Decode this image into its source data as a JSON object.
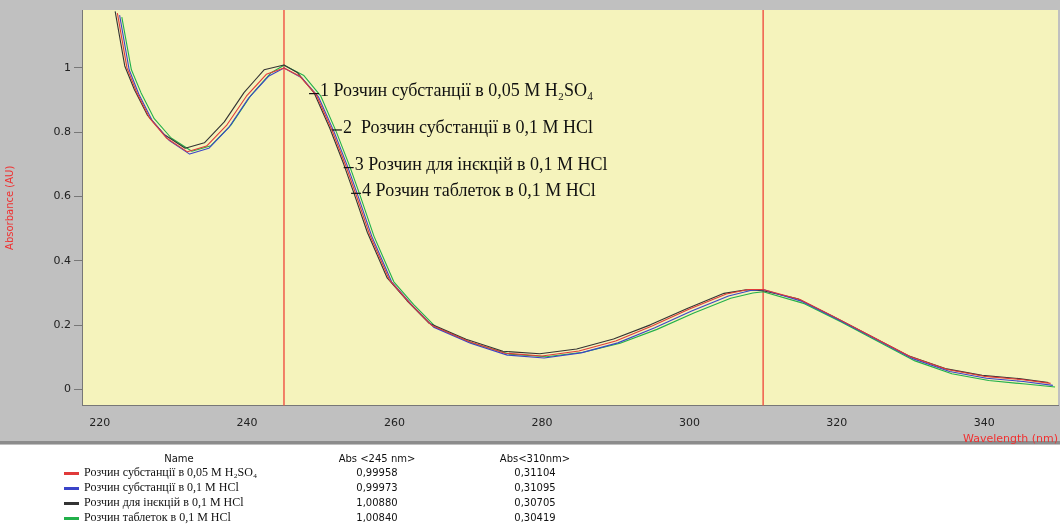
{
  "chart_data": {
    "type": "line",
    "xlabel": "Wavelength (nm)",
    "ylabel": "Absorbance (AU)",
    "x": [
      222.4,
      223.7,
      225,
      226.8,
      229.1,
      231.9,
      234.5,
      237.2,
      239.9,
      242.6,
      245,
      247.1,
      249.4,
      251.5,
      253.4,
      254.8,
      256.6,
      259.3,
      262,
      265,
      270,
      275,
      280,
      285,
      290,
      295,
      300,
      305,
      308,
      310,
      315,
      320,
      325,
      330,
      335,
      340,
      345,
      349
    ],
    "series": [
      {
        "name": "Розчин субстанції в 0,05 M H₂SO₄",
        "color": "#e03a3a",
        "values": [
          1.17,
          1.0,
          0.925,
          0.843,
          0.781,
          0.739,
          0.757,
          0.821,
          0.912,
          0.98,
          0.99958,
          0.975,
          0.915,
          0.807,
          0.695,
          0.604,
          0.483,
          0.341,
          0.27,
          0.2,
          0.15,
          0.113,
          0.104,
          0.12,
          0.151,
          0.198,
          0.25,
          0.297,
          0.311,
          0.31104,
          0.28,
          0.222,
          0.162,
          0.102,
          0.062,
          0.041,
          0.031,
          0.019
        ]
      },
      {
        "name": "Розчин субстанції в 0,1 M HCl",
        "color": "#3a44c8",
        "x": [
          222.7,
          224,
          225.3,
          227.1,
          229.4,
          232.2,
          234.8,
          237.5,
          240.2,
          242.9,
          245,
          247.4,
          249.7,
          251.8,
          253.7,
          255.1,
          256.9,
          259.6,
          262.3,
          265.3,
          270.3,
          275.3,
          280.3,
          285.3,
          290.3,
          295.3,
          300.3,
          305.3,
          308.3,
          310,
          315.3,
          320.3,
          325.3,
          330.3,
          335.3,
          340.3,
          345.3,
          349.3
        ],
        "values": [
          1.164,
          0.994,
          0.919,
          0.837,
          0.775,
          0.732,
          0.75,
          0.814,
          0.906,
          0.974,
          0.99973,
          0.969,
          0.909,
          0.801,
          0.689,
          0.598,
          0.477,
          0.335,
          0.264,
          0.194,
          0.144,
          0.107,
          0.098,
          0.114,
          0.145,
          0.192,
          0.244,
          0.291,
          0.308,
          0.31095,
          0.274,
          0.216,
          0.156,
          0.096,
          0.056,
          0.035,
          0.025,
          0.013
        ]
      },
      {
        "name": "Розчин для інєкцій в 0,1 M HCl",
        "color": "#333333",
        "x": [
          222.1,
          223.4,
          224.7,
          226.5,
          228.8,
          231.6,
          234.2,
          236.9,
          239.6,
          242.3,
          245,
          246.8,
          249.1,
          251.2,
          253.1,
          254.5,
          256.3,
          259,
          261.7,
          264.7,
          269.7,
          274.7,
          279.7,
          284.7,
          289.7,
          294.7,
          299.7,
          304.7,
          307.7,
          310,
          314.7,
          319.7,
          324.7,
          329.7,
          334.7,
          339.7,
          344.7,
          348.7
        ],
        "values": [
          1.176,
          1.006,
          0.933,
          0.852,
          0.792,
          0.75,
          0.767,
          0.832,
          0.924,
          0.994,
          1.0088,
          0.986,
          0.922,
          0.813,
          0.701,
          0.61,
          0.489,
          0.347,
          0.276,
          0.206,
          0.156,
          0.119,
          0.111,
          0.126,
          0.157,
          0.201,
          0.252,
          0.299,
          0.31,
          0.30705,
          0.282,
          0.225,
          0.165,
          0.105,
          0.065,
          0.044,
          0.034,
          0.022
        ]
      },
      {
        "name": "Розчин таблеток в 0,1 M HCl",
        "color": "#22b04a",
        "x": [
          223,
          224.3,
          225.6,
          227.4,
          229.7,
          232.5,
          235.1,
          237.8,
          240.5,
          243.2,
          245,
          247.7,
          250,
          252.1,
          254,
          255.4,
          257.2,
          259.9,
          262.6,
          265.6,
          270.6,
          275.6,
          280.6,
          285.6,
          290.6,
          295.6,
          300.6,
          305.6,
          308.6,
          310,
          315.6,
          320.6,
          325.6,
          330.6,
          335.6,
          340.6,
          345.6,
          349.6
        ],
        "values": [
          1.158,
          0.994,
          0.923,
          0.842,
          0.782,
          0.741,
          0.758,
          0.822,
          0.914,
          0.984,
          1.0084,
          0.976,
          0.912,
          0.801,
          0.689,
          0.598,
          0.477,
          0.335,
          0.264,
          0.194,
          0.144,
          0.11,
          0.102,
          0.116,
          0.144,
          0.187,
          0.238,
          0.284,
          0.3,
          0.30419,
          0.267,
          0.21,
          0.149,
          0.089,
          0.049,
          0.028,
          0.017,
          0.008
        ]
      }
    ],
    "xlim": [
      217.6,
      350
    ],
    "xticks": [
      220,
      240,
      260,
      280,
      300,
      320,
      340
    ],
    "ylim": [
      -0.05,
      1.18
    ],
    "yticks": [
      0,
      0.2,
      0.4,
      0.6,
      0.8,
      1
    ],
    "ref_lines": [
      {
        "axis": "x",
        "value": 245,
        "color": "#f05a4a"
      },
      {
        "axis": "x",
        "value": 310,
        "color": "#f05a4a"
      }
    ],
    "grid": false,
    "legend": "bottom left",
    "annotations": [
      {
        "text": "1 Розчин субстанції в 0,05 M H₂SO₄",
        "x": 248.4,
        "y": 0.92
      },
      {
        "text": "2  Розчин субстанції в 0,1 M HCl",
        "x": 251.5,
        "y": 0.807
      },
      {
        "text": "3 Розчин для інєкцій в 0,1 M HCl",
        "x": 253.1,
        "y": 0.69
      },
      {
        "text": "4 Розчин таблеток в 0,1 M HCl",
        "x": 254.1,
        "y": 0.61
      },
      "Name",
      "Abs <245 nm>",
      "Abs<310nm>",
      "0,99958",
      "0,31104",
      "0,99973",
      "0,31095",
      "1,00880",
      "0,30705",
      "1,00840",
      "0,30419"
    ]
  }
}
